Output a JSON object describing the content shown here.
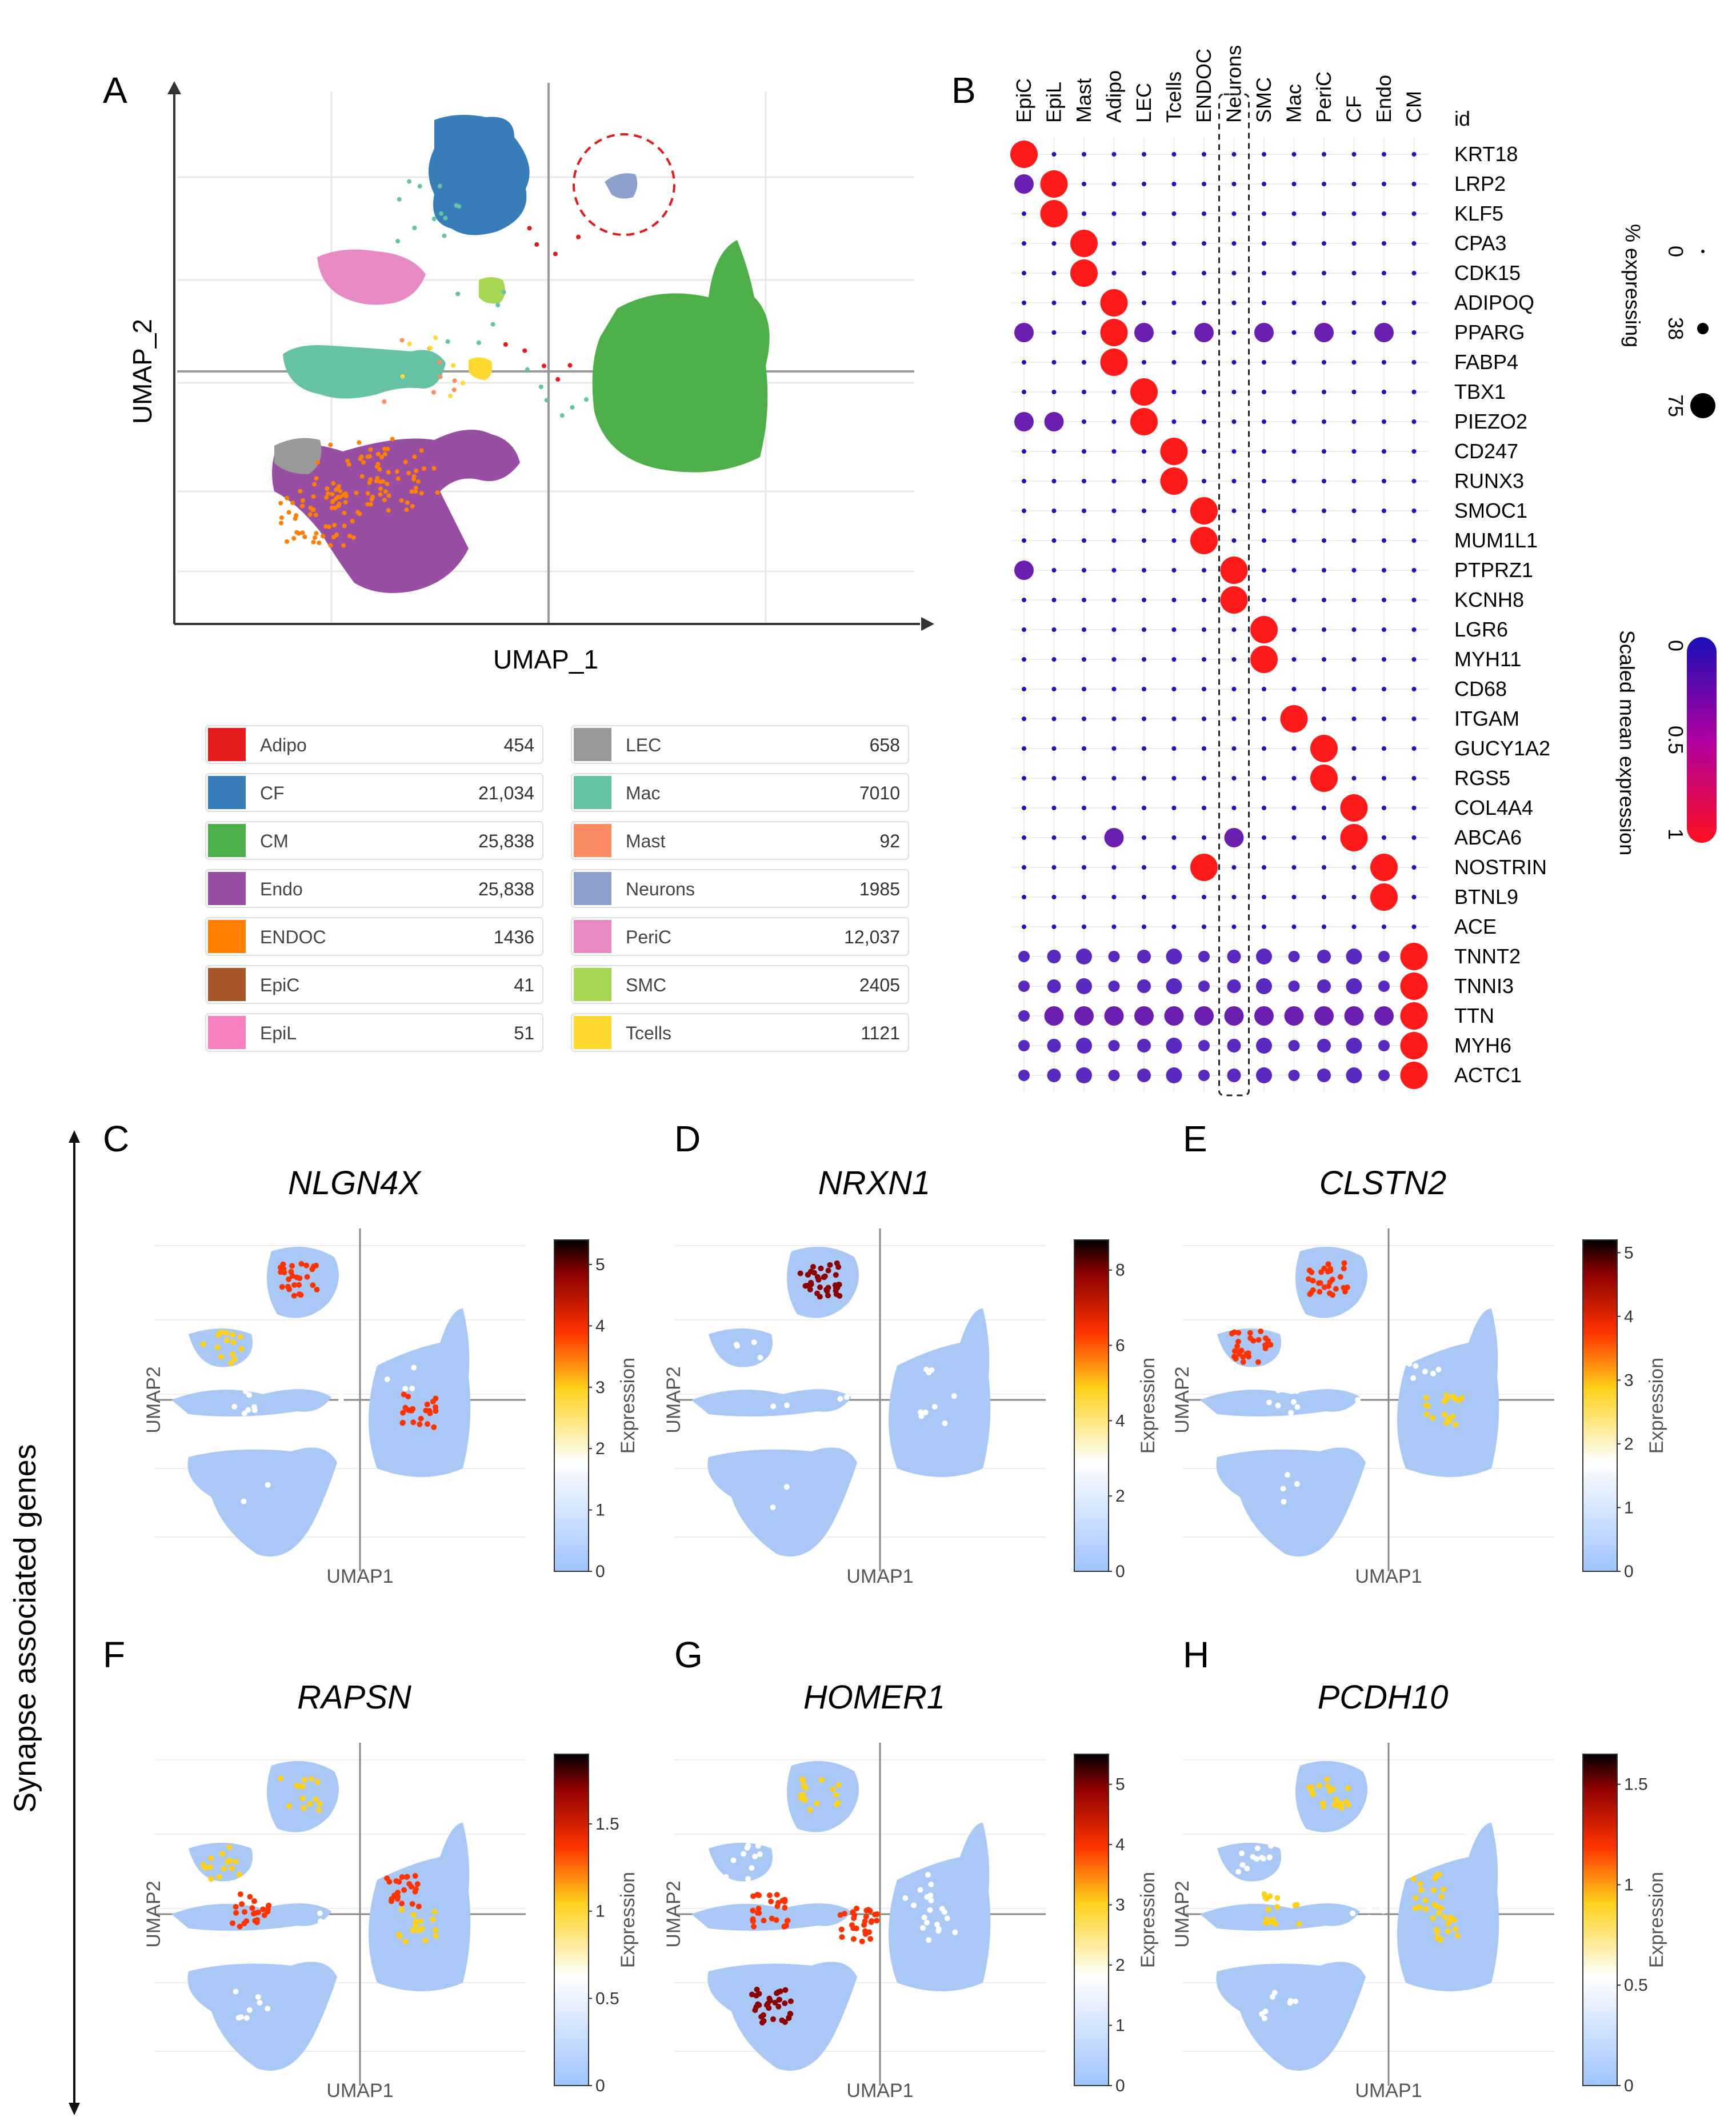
{
  "panels": {
    "A": "A",
    "B": "B",
    "C": "C",
    "D": "D",
    "E": "E",
    "F": "F",
    "G": "G",
    "H": "H"
  },
  "side_label": "Synapse associated genes",
  "umap_A": {
    "xlabel": "UMAP_1",
    "ylabel": "UMAP_2"
  },
  "legend": {
    "left": [
      {
        "name": "Adipo",
        "count": "454",
        "color": "#e41a1c"
      },
      {
        "name": "CF",
        "count": "21,034",
        "color": "#377eb8"
      },
      {
        "name": "CM",
        "count": "25,838",
        "color": "#4daf4a"
      },
      {
        "name": "Endo",
        "count": "25,838",
        "color": "#984ea3"
      },
      {
        "name": "ENDOC",
        "count": "1436",
        "color": "#ff7f00"
      },
      {
        "name": "EpiC",
        "count": "41",
        "color": "#a65628"
      },
      {
        "name": "EpiL",
        "count": "51",
        "color": "#f781bf"
      }
    ],
    "right": [
      {
        "name": "LEC",
        "count": "658",
        "color": "#999999"
      },
      {
        "name": "Mac",
        "count": "7010",
        "color": "#66c2a5"
      },
      {
        "name": "Mast",
        "count": "92",
        "color": "#fc8d62"
      },
      {
        "name": "Neurons",
        "count": "1985",
        "color": "#8da0cb"
      },
      {
        "name": "PeriC",
        "count": "12,037",
        "color": "#e78ac3"
      },
      {
        "name": "SMC",
        "count": "2405",
        "color": "#a6d854"
      },
      {
        "name": "Tcells",
        "count": "1121",
        "color": "#ffd92f"
      }
    ]
  },
  "chart_data": [
    {
      "type": "dotplot",
      "title": "B",
      "columns": [
        "EpiC",
        "EpiL",
        "Mast",
        "Adipo",
        "LEC",
        "Tcells",
        "ENDOC",
        "Neurons",
        "SMC",
        "Mac",
        "PeriC",
        "CF",
        "Endo",
        "CM"
      ],
      "id_label": "id",
      "genes": [
        "KRT18",
        "LRP2",
        "KLF5",
        "CPA3",
        "CDK15",
        "ADIPOQ",
        "PPARG",
        "FABP4",
        "TBX1",
        "PIEZO2",
        "CD247",
        "RUNX3",
        "SMOC1",
        "MUM1L1",
        "PTPRZ1",
        "KCNH8",
        "LGR6",
        "MYH11",
        "CD68",
        "ITGAM",
        "GUCY1A2",
        "RGS5",
        "COL4A4",
        "ABCA6",
        "NOSTRIN",
        "BTNL9",
        "ACE",
        "TNNT2",
        "TNNI3",
        "TTN",
        "MYH6",
        "ACTC1"
      ],
      "size_legend": {
        "title": "% expressing",
        "values": [
          "0",
          "38",
          "75"
        ]
      },
      "color_legend": {
        "title": "Scaled mean expression",
        "ticks": [
          "0",
          "0.5",
          "1"
        ]
      },
      "highlight_column": "Neurons"
    },
    {
      "type": "umap-feature",
      "gene": "NLGN4X",
      "xlabel": "UMAP1",
      "ylabel": "UMAP2",
      "colorbar_title": "Expression",
      "ticks": [
        "0",
        "1",
        "2",
        "3",
        "4",
        "5"
      ],
      "max": 5.4,
      "highlight": [
        0.72,
        0.62,
        0.35,
        0.28,
        0.05,
        0.12,
        0.1,
        0.3
      ]
    },
    {
      "type": "umap-feature",
      "gene": "NRXN1",
      "xlabel": "UMAP1",
      "ylabel": "UMAP2",
      "colorbar_title": "Expression",
      "ticks": [
        "0",
        "2",
        "4",
        "6",
        "8"
      ],
      "max": 8.8,
      "highlight": [
        0.95,
        0.15,
        0.1,
        0.12,
        0.05,
        0.06,
        0.08,
        0.1
      ]
    },
    {
      "type": "umap-feature",
      "gene": "CLSTN2",
      "xlabel": "UMAP1",
      "ylabel": "UMAP2",
      "colorbar_title": "Expression",
      "ticks": [
        "0",
        "1",
        "2",
        "3",
        "4",
        "5"
      ],
      "max": 5.2,
      "highlight": [
        0.75,
        0.45,
        0.7,
        0.2,
        0.1,
        0.1,
        0.15,
        0.12
      ]
    },
    {
      "type": "umap-feature",
      "gene": "RAPSN",
      "xlabel": "UMAP1",
      "ylabel": "UMAP2",
      "colorbar_title": "Expression",
      "ticks": [
        "0",
        "0.5",
        "1",
        "1.5"
      ],
      "max": 1.9,
      "highlight": [
        0.35,
        0.4,
        0.4,
        0.6,
        0.2,
        0.15,
        0.6,
        0.3
      ]
    },
    {
      "type": "umap-feature",
      "gene": "HOMER1",
      "xlabel": "UMAP1",
      "ylabel": "UMAP2",
      "colorbar_title": "Expression",
      "ticks": [
        "0",
        "1",
        "2",
        "3",
        "4",
        "5"
      ],
      "max": 5.5,
      "highlight": [
        0.4,
        0.3,
        0.25,
        0.7,
        0.85,
        0.7,
        0.2,
        0.15
      ]
    },
    {
      "type": "umap-feature",
      "gene": "PCDH10",
      "xlabel": "UMAP1",
      "ylabel": "UMAP2",
      "colorbar_title": "Expression",
      "ticks": [
        "0",
        "0.5",
        "1",
        "1.5"
      ],
      "max": 1.65,
      "highlight": [
        0.5,
        0.4,
        0.3,
        0.4,
        0.2,
        0.2,
        0.4,
        0.3
      ]
    }
  ]
}
